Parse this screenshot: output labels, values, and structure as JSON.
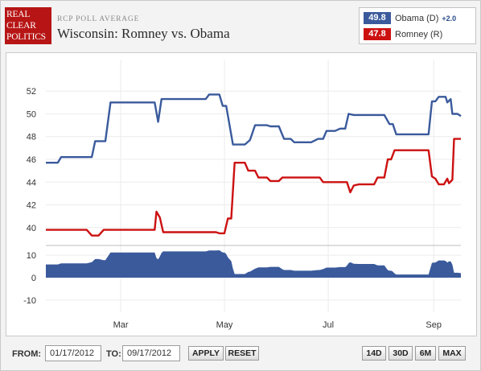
{
  "header": {
    "logo_lines": [
      "REAL",
      "CLEAR",
      "POLITICS"
    ],
    "kicker": "RCP POLL AVERAGE",
    "title": "Wisconsin: Romney vs. Obama"
  },
  "legend": {
    "items": [
      {
        "value": "49.8",
        "name": "Obama (D)",
        "spread": "+2.0",
        "color": "#3a5a9c"
      },
      {
        "value": "47.8",
        "name": "Romney (R)",
        "spread": "",
        "color": "#cc1111"
      }
    ]
  },
  "controls": {
    "from_label": "FROM:",
    "from_value": "01/17/2012",
    "to_label": "TO:",
    "to_value": "09/17/2012",
    "apply_label": "APPLY",
    "reset_label": "RESET",
    "ranges": [
      "14D",
      "30D",
      "6M",
      "MAX"
    ]
  },
  "chart_data": {
    "type": "line",
    "title": "Wisconsin: Romney vs. Obama",
    "x_ticks": [
      {
        "label": "Mar",
        "date": "2012-03-01"
      },
      {
        "label": "May",
        "date": "2012-05-01"
      },
      {
        "label": "Jul",
        "date": "2012-07-01"
      },
      {
        "label": "Sep",
        "date": "2012-09-01"
      }
    ],
    "x_range": [
      "2012-01-17",
      "2012-09-17"
    ],
    "ylim": [
      38.5,
      53.5
    ],
    "y_ticks": [
      40,
      42,
      44,
      46,
      48,
      50,
      52
    ],
    "grid": true,
    "series": [
      {
        "name": "Obama (D)",
        "color": "#3a5a9c",
        "points": [
          [
            "2012-01-17",
            45.7
          ],
          [
            "2012-01-24",
            45.7
          ],
          [
            "2012-01-26",
            46.2
          ],
          [
            "2012-02-13",
            46.2
          ],
          [
            "2012-02-15",
            47.6
          ],
          [
            "2012-02-21",
            47.6
          ],
          [
            "2012-02-24",
            51.0
          ],
          [
            "2012-03-21",
            51.0
          ],
          [
            "2012-03-23",
            49.3
          ],
          [
            "2012-03-25",
            51.3
          ],
          [
            "2012-04-20",
            51.3
          ],
          [
            "2012-04-22",
            51.7
          ],
          [
            "2012-04-28",
            51.7
          ],
          [
            "2012-04-30",
            50.7
          ],
          [
            "2012-05-02",
            50.7
          ],
          [
            "2012-05-06",
            47.3
          ],
          [
            "2012-05-13",
            47.3
          ],
          [
            "2012-05-16",
            47.7
          ],
          [
            "2012-05-19",
            49.0
          ],
          [
            "2012-05-26",
            49.0
          ],
          [
            "2012-05-28",
            48.9
          ],
          [
            "2012-06-02",
            48.9
          ],
          [
            "2012-06-05",
            47.8
          ],
          [
            "2012-06-09",
            47.8
          ],
          [
            "2012-06-11",
            47.5
          ],
          [
            "2012-06-21",
            47.5
          ],
          [
            "2012-06-25",
            47.8
          ],
          [
            "2012-06-28",
            47.8
          ],
          [
            "2012-06-30",
            48.5
          ],
          [
            "2012-07-05",
            48.5
          ],
          [
            "2012-07-08",
            48.7
          ],
          [
            "2012-07-11",
            48.7
          ],
          [
            "2012-07-13",
            50.0
          ],
          [
            "2012-07-16",
            49.9
          ],
          [
            "2012-08-03",
            49.9
          ],
          [
            "2012-08-06",
            49.1
          ],
          [
            "2012-08-08",
            49.1
          ],
          [
            "2012-08-10",
            48.2
          ],
          [
            "2012-08-29",
            48.2
          ],
          [
            "2012-08-31",
            51.1
          ],
          [
            "2012-09-02",
            51.1
          ],
          [
            "2012-09-04",
            51.5
          ],
          [
            "2012-09-08",
            51.5
          ],
          [
            "2012-09-09",
            51.0
          ],
          [
            "2012-09-11",
            51.3
          ],
          [
            "2012-09-12",
            50.0
          ],
          [
            "2012-09-15",
            50.0
          ],
          [
            "2012-09-17",
            49.8
          ]
        ]
      },
      {
        "name": "Romney (R)",
        "color": "#cc1111",
        "points": [
          [
            "2012-01-17",
            39.8
          ],
          [
            "2012-02-10",
            39.8
          ],
          [
            "2012-02-13",
            39.3
          ],
          [
            "2012-02-17",
            39.3
          ],
          [
            "2012-02-20",
            39.8
          ],
          [
            "2012-03-21",
            39.8
          ],
          [
            "2012-03-22",
            41.4
          ],
          [
            "2012-03-24",
            40.9
          ],
          [
            "2012-03-26",
            39.6
          ],
          [
            "2012-04-26",
            39.6
          ],
          [
            "2012-04-28",
            39.5
          ],
          [
            "2012-05-01",
            39.5
          ],
          [
            "2012-05-03",
            40.8
          ],
          [
            "2012-05-05",
            40.8
          ],
          [
            "2012-05-07",
            45.7
          ],
          [
            "2012-05-13",
            45.7
          ],
          [
            "2012-05-15",
            45.0
          ],
          [
            "2012-05-19",
            45.0
          ],
          [
            "2012-05-21",
            44.4
          ],
          [
            "2012-05-26",
            44.4
          ],
          [
            "2012-05-28",
            44.1
          ],
          [
            "2012-06-02",
            44.1
          ],
          [
            "2012-06-04",
            44.4
          ],
          [
            "2012-06-26",
            44.4
          ],
          [
            "2012-06-28",
            44.0
          ],
          [
            "2012-07-12",
            44.0
          ],
          [
            "2012-07-14",
            43.1
          ],
          [
            "2012-07-16",
            43.7
          ],
          [
            "2012-07-19",
            43.8
          ],
          [
            "2012-07-28",
            43.8
          ],
          [
            "2012-07-30",
            44.4
          ],
          [
            "2012-08-03",
            44.4
          ],
          [
            "2012-08-05",
            46.0
          ],
          [
            "2012-08-07",
            46.0
          ],
          [
            "2012-08-09",
            46.8
          ],
          [
            "2012-08-29",
            46.8
          ],
          [
            "2012-08-31",
            44.5
          ],
          [
            "2012-09-02",
            44.3
          ],
          [
            "2012-09-04",
            43.8
          ],
          [
            "2012-09-07",
            43.8
          ],
          [
            "2012-09-09",
            44.3
          ],
          [
            "2012-09-10",
            43.9
          ],
          [
            "2012-09-12",
            44.2
          ],
          [
            "2012-09-13",
            47.8
          ],
          [
            "2012-09-17",
            47.8
          ]
        ]
      }
    ],
    "spread_panel": {
      "type": "area",
      "name": "Obama (D) +2.0",
      "ylim": [
        -14,
        14
      ],
      "y_ticks": [
        10,
        0,
        -10
      ],
      "color": "#3a5a9c"
    }
  }
}
